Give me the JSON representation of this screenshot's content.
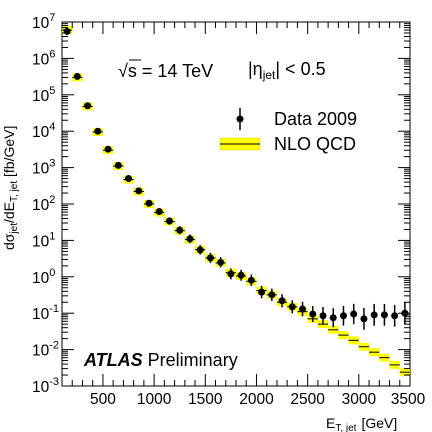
{
  "chart_data": {
    "type": "scatter",
    "xlabel_main": "E",
    "xlabel_sub": "T, jet",
    "xlabel_unit": "[GeV]",
    "ylabel_main": "dσ",
    "ylabel_sub1": "jet",
    "ylabel_mid": "/dE",
    "ylabel_sub2": "T, jet",
    "ylabel_unit": " [fb/GeV]",
    "xlim": [
      100,
      3500
    ],
    "ylim_log10": [
      -3,
      7
    ],
    "ylog": true,
    "x_ticks": [
      "500",
      "1000",
      "1500",
      "2000",
      "2500",
      "3000",
      "3500"
    ],
    "y_ticks": [
      {
        "exp": -3
      },
      {
        "exp": -2
      },
      {
        "exp": -1
      },
      {
        "exp": 0
      },
      {
        "exp": 1
      },
      {
        "exp": 2
      },
      {
        "exp": 3
      },
      {
        "exp": 4
      },
      {
        "exp": 5
      },
      {
        "exp": 6
      },
      {
        "exp": 7
      }
    ],
    "annotations": {
      "energy_sqrt": "√",
      "energy_s": "s",
      "energy_value": " = 14 TeV",
      "eta_prefix": "|η",
      "eta_sub": "jet",
      "eta_suffix": "| < 0.5",
      "atlas": "ATLAS",
      "preliminary": " Preliminary"
    },
    "legend_position": "top-right",
    "series": [
      {
        "name": "Data 2009",
        "marker": "point-with-error",
        "x": [
          150,
          250,
          350,
          450,
          550,
          650,
          750,
          850,
          950,
          1050,
          1150,
          1250,
          1350,
          1450,
          1550,
          1650,
          1750,
          1850,
          1950,
          2050,
          2150,
          2250,
          2350,
          2450,
          2550,
          2650,
          2750,
          2850,
          2950,
          3050,
          3150,
          3250,
          3350,
          3450
        ],
        "y": [
          5500000.0,
          320000.0,
          50000.0,
          10000.0,
          3200.0,
          1150.0,
          500.0,
          230.0,
          105.0,
          62.0,
          34.0,
          19.0,
          11.0,
          5.5,
          3.3,
          2.5,
          1.2,
          1.1,
          0.8,
          0.38,
          0.32,
          0.22,
          0.15,
          0.13,
          0.095,
          0.085,
          0.075,
          0.085,
          0.095,
          0.07,
          0.09,
          0.09,
          0.085,
          0.1
        ],
        "yerr_log10": [
          0.03,
          0.03,
          0.03,
          0.03,
          0.04,
          0.05,
          0.06,
          0.07,
          0.08,
          0.09,
          0.1,
          0.11,
          0.12,
          0.13,
          0.14,
          0.14,
          0.15,
          0.15,
          0.16,
          0.17,
          0.17,
          0.18,
          0.18,
          0.2,
          0.22,
          0.24,
          0.26,
          0.27,
          0.28,
          0.3,
          0.3,
          0.3,
          0.3,
          0.3
        ],
        "color": "#000000"
      },
      {
        "name": "NLO QCD",
        "marker": "band",
        "x_bins": [
          [
            100,
            200
          ],
          [
            200,
            300
          ],
          [
            300,
            400
          ],
          [
            400,
            500
          ],
          [
            500,
            600
          ],
          [
            600,
            700
          ],
          [
            700,
            800
          ],
          [
            800,
            900
          ],
          [
            900,
            1000
          ],
          [
            1000,
            1100
          ],
          [
            1100,
            1200
          ],
          [
            1200,
            1300
          ],
          [
            1300,
            1400
          ],
          [
            1400,
            1500
          ],
          [
            1500,
            1600
          ],
          [
            1600,
            1700
          ],
          [
            1700,
            1800
          ],
          [
            1800,
            1900
          ],
          [
            1900,
            2000
          ],
          [
            2000,
            2100
          ],
          [
            2100,
            2200
          ],
          [
            2200,
            2300
          ],
          [
            2300,
            2400
          ],
          [
            2400,
            2500
          ],
          [
            2500,
            2600
          ],
          [
            2600,
            2700
          ],
          [
            2700,
            2800
          ],
          [
            2800,
            2900
          ],
          [
            2900,
            3000
          ],
          [
            3000,
            3100
          ],
          [
            3100,
            3200
          ],
          [
            3200,
            3300
          ],
          [
            3300,
            3400
          ],
          [
            3400,
            3500
          ]
        ],
        "y": [
          6000000.0,
          300000.0,
          48000.0,
          9500.0,
          3000.0,
          1100.0,
          470.0,
          220.0,
          100.0,
          58.0,
          33.0,
          18.5,
          10.5,
          5.6,
          3.3,
          2.4,
          1.3,
          1.05,
          0.75,
          0.42,
          0.32,
          0.2,
          0.15,
          0.11,
          0.07,
          0.05,
          0.035,
          0.025,
          0.018,
          0.012,
          0.0085,
          0.006,
          0.0038,
          0.0024
        ],
        "color": "#ffff00",
        "edge_color": "#d8d800"
      }
    ]
  }
}
